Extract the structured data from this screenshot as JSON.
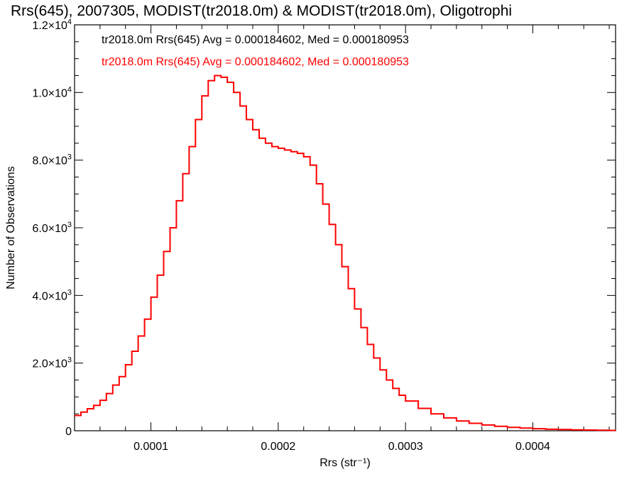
{
  "chart_data": {
    "type": "line",
    "title": "Rrs(645), 2007305, MODIST(tr2018.0m) & MODIST(tr2018.0m), Oligotrophi",
    "xlabel": "Rrs (str⁻¹)",
    "ylabel": "Number of Observations",
    "xlim": [
      4e-05,
      0.000465
    ],
    "ylim": [
      0,
      12000
    ],
    "x_ticks": [
      0.0001,
      0.0002,
      0.0003,
      0.0004
    ],
    "x_tick_labels": [
      "0.0001",
      "0.0002",
      "0.0003",
      "0.0004"
    ],
    "y_ticks": [
      0,
      2000,
      4000,
      6000,
      8000,
      10000,
      12000
    ],
    "y_tick_labels": [
      {
        "mantissa": "0",
        "exp": ""
      },
      {
        "mantissa": "2.0×10",
        "exp": "3"
      },
      {
        "mantissa": "4.0×10",
        "exp": "3"
      },
      {
        "mantissa": "6.0×10",
        "exp": "3"
      },
      {
        "mantissa": "8.0×10",
        "exp": "3"
      },
      {
        "mantissa": "1.0×10",
        "exp": "4"
      },
      {
        "mantissa": "1.2×10",
        "exp": "4"
      }
    ],
    "annotations": [
      {
        "text": "tr2018.0m Rrs(645) Avg = 0.000184602, Med = 0.000180953",
        "color": "#000000"
      },
      {
        "text": "tr2018.0m Rrs(645) Avg = 0.000184602, Med = 0.000180953",
        "color": "#ff0000"
      }
    ],
    "series": [
      {
        "color": "#ff0000",
        "step": true,
        "x": [
          4e-05,
          4.5e-05,
          5e-05,
          5.5e-05,
          6e-05,
          6.5e-05,
          7e-05,
          7.5e-05,
          8e-05,
          8.5e-05,
          9e-05,
          9.5e-05,
          0.0001,
          0.000105,
          0.00011,
          0.000115,
          0.00012,
          0.000125,
          0.00013,
          0.000135,
          0.00014,
          0.000145,
          0.00015,
          0.000155,
          0.00016,
          0.000165,
          0.00017,
          0.000175,
          0.00018,
          0.000185,
          0.00019,
          0.000195,
          0.0002,
          0.000205,
          0.00021,
          0.000215,
          0.00022,
          0.000225,
          0.00023,
          0.000235,
          0.00024,
          0.000245,
          0.00025,
          0.000255,
          0.00026,
          0.000265,
          0.00027,
          0.000275,
          0.00028,
          0.000285,
          0.00029,
          0.000295,
          0.0003,
          0.00031,
          0.00032,
          0.00033,
          0.00034,
          0.00035,
          0.00036,
          0.00037,
          0.00038,
          0.00039,
          0.0004,
          0.00041,
          0.00042,
          0.00043,
          0.00044,
          0.00045,
          0.00046,
          0.000465
        ],
        "y": [
          450,
          550,
          650,
          750,
          900,
          1100,
          1350,
          1600,
          1950,
          2350,
          2800,
          3300,
          3950,
          4600,
          5300,
          6000,
          6800,
          7600,
          8400,
          9200,
          9900,
          10350,
          10500,
          10450,
          10300,
          10000,
          9600,
          9200,
          8900,
          8650,
          8500,
          8400,
          8350,
          8300,
          8250,
          8200,
          8100,
          7850,
          7300,
          6700,
          6100,
          5500,
          4850,
          4200,
          3600,
          3050,
          2550,
          2150,
          1800,
          1500,
          1250,
          1050,
          880,
          660,
          500,
          380,
          290,
          220,
          170,
          130,
          100,
          80,
          60,
          45,
          35,
          25,
          20,
          15,
          10,
          8
        ]
      }
    ]
  }
}
